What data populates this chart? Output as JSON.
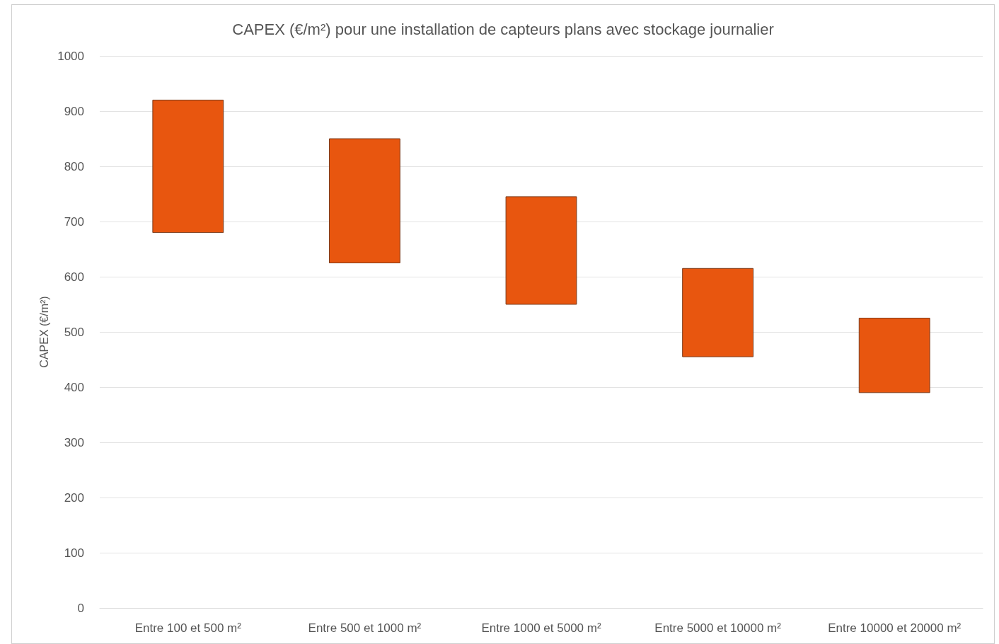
{
  "chart_data": {
    "type": "bar",
    "title": "CAPEX (€/m²) pour une installation de capteurs plans avec stockage journalier",
    "ylabel": "CAPEX (€/m²)",
    "categories": [
      "Entre 100 et 500 m²",
      "Entre 500 et 1000 m²",
      "Entre 1000 et 5000 m²",
      "Entre 5000 et 10000 m²",
      "Entre 10000 et 20000 m²"
    ],
    "base": [
      680,
      625,
      550,
      455,
      390
    ],
    "values": [
      240,
      225,
      195,
      160,
      135
    ],
    "color": "#e8560f",
    "ylim": [
      0,
      1000
    ],
    "yticks": [
      0,
      100,
      200,
      300,
      400,
      500,
      600,
      700,
      800,
      900,
      1000
    ],
    "grid": "y"
  }
}
